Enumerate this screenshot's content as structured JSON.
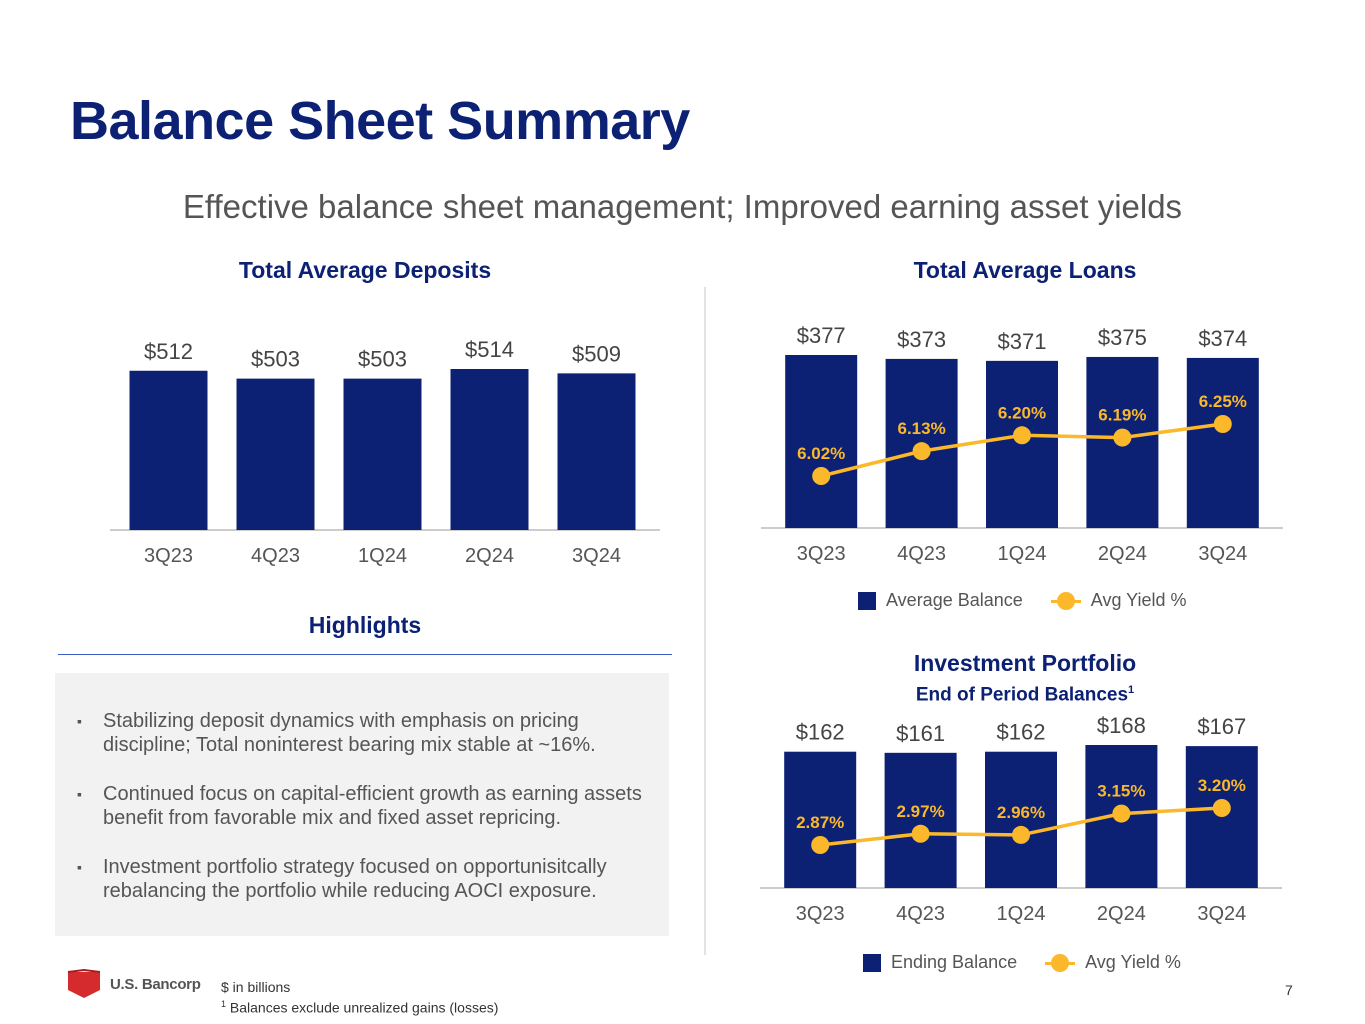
{
  "page": {
    "title": "Balance Sheet Summary",
    "subtitle": "Effective balance sheet management; Improved earning asset yields",
    "page_number": "7",
    "footnote_units": "$ in billions",
    "footnote_1_marker": "1",
    "footnote_1": "Balances exclude unrealized gains (losses)",
    "logo_text": "U.S. Bancorp"
  },
  "colors": {
    "navy": "#0c2074",
    "gold": "#fbb82a",
    "logo_red": "#d52b2e"
  },
  "highlights": {
    "title": "Highlights",
    "bullet_glyph": "▪",
    "items": [
      "Stabilizing deposit dynamics with emphasis on pricing discipline; Total noninterest bearing mix stable at ~16%.",
      "Continued focus on capital-efficient growth as earning assets benefit from favorable mix and fixed asset repricing.",
      "Investment portfolio strategy focused on opportunisitcally rebalancing the portfolio while reducing AOCI exposure."
    ]
  },
  "chart_data": [
    {
      "type": "bar",
      "title": "Total Average Deposits",
      "categories": [
        "3Q23",
        "4Q23",
        "1Q24",
        "2Q24",
        "3Q24"
      ],
      "values": [
        512,
        503,
        503,
        514,
        509
      ],
      "labels": [
        "$512",
        "$503",
        "$503",
        "$514",
        "$509"
      ],
      "xlabel": "",
      "ylabel": "",
      "grid": false
    },
    {
      "type": "bar",
      "title": "Total Average Loans",
      "categories": [
        "3Q23",
        "4Q23",
        "1Q24",
        "2Q24",
        "3Q24"
      ],
      "series": [
        {
          "name": "Average Balance",
          "type": "bar",
          "values": [
            377,
            373,
            371,
            375,
            374
          ],
          "labels": [
            "$377",
            "$373",
            "$371",
            "$375",
            "$374"
          ]
        },
        {
          "name": "Avg Yield %",
          "type": "line",
          "values": [
            6.02,
            6.13,
            6.2,
            6.19,
            6.25
          ],
          "labels": [
            "6.02%",
            "6.13%",
            "6.20%",
            "6.19%",
            "6.25%"
          ]
        }
      ],
      "legend": [
        "Average Balance",
        "Avg Yield %"
      ],
      "legend_position": "bottom",
      "grid": false
    },
    {
      "type": "bar",
      "title": "Investment Portfolio",
      "subtitle": "End of Period Balances",
      "subtitle_marker": "1",
      "categories": [
        "3Q23",
        "4Q23",
        "1Q24",
        "2Q24",
        "3Q24"
      ],
      "series": [
        {
          "name": "Ending Balance",
          "type": "bar",
          "values": [
            162,
            161,
            162,
            168,
            167
          ],
          "labels": [
            "$162",
            "$161",
            "$162",
            "$168",
            "$167"
          ]
        },
        {
          "name": "Avg Yield %",
          "type": "line",
          "values": [
            2.87,
            2.97,
            2.96,
            3.15,
            3.2
          ],
          "labels": [
            "2.87%",
            "2.97%",
            "2.96%",
            "3.15%",
            "3.20%"
          ]
        }
      ],
      "legend": [
        "Ending Balance",
        "Avg Yield %"
      ],
      "legend_position": "bottom",
      "grid": false
    }
  ]
}
